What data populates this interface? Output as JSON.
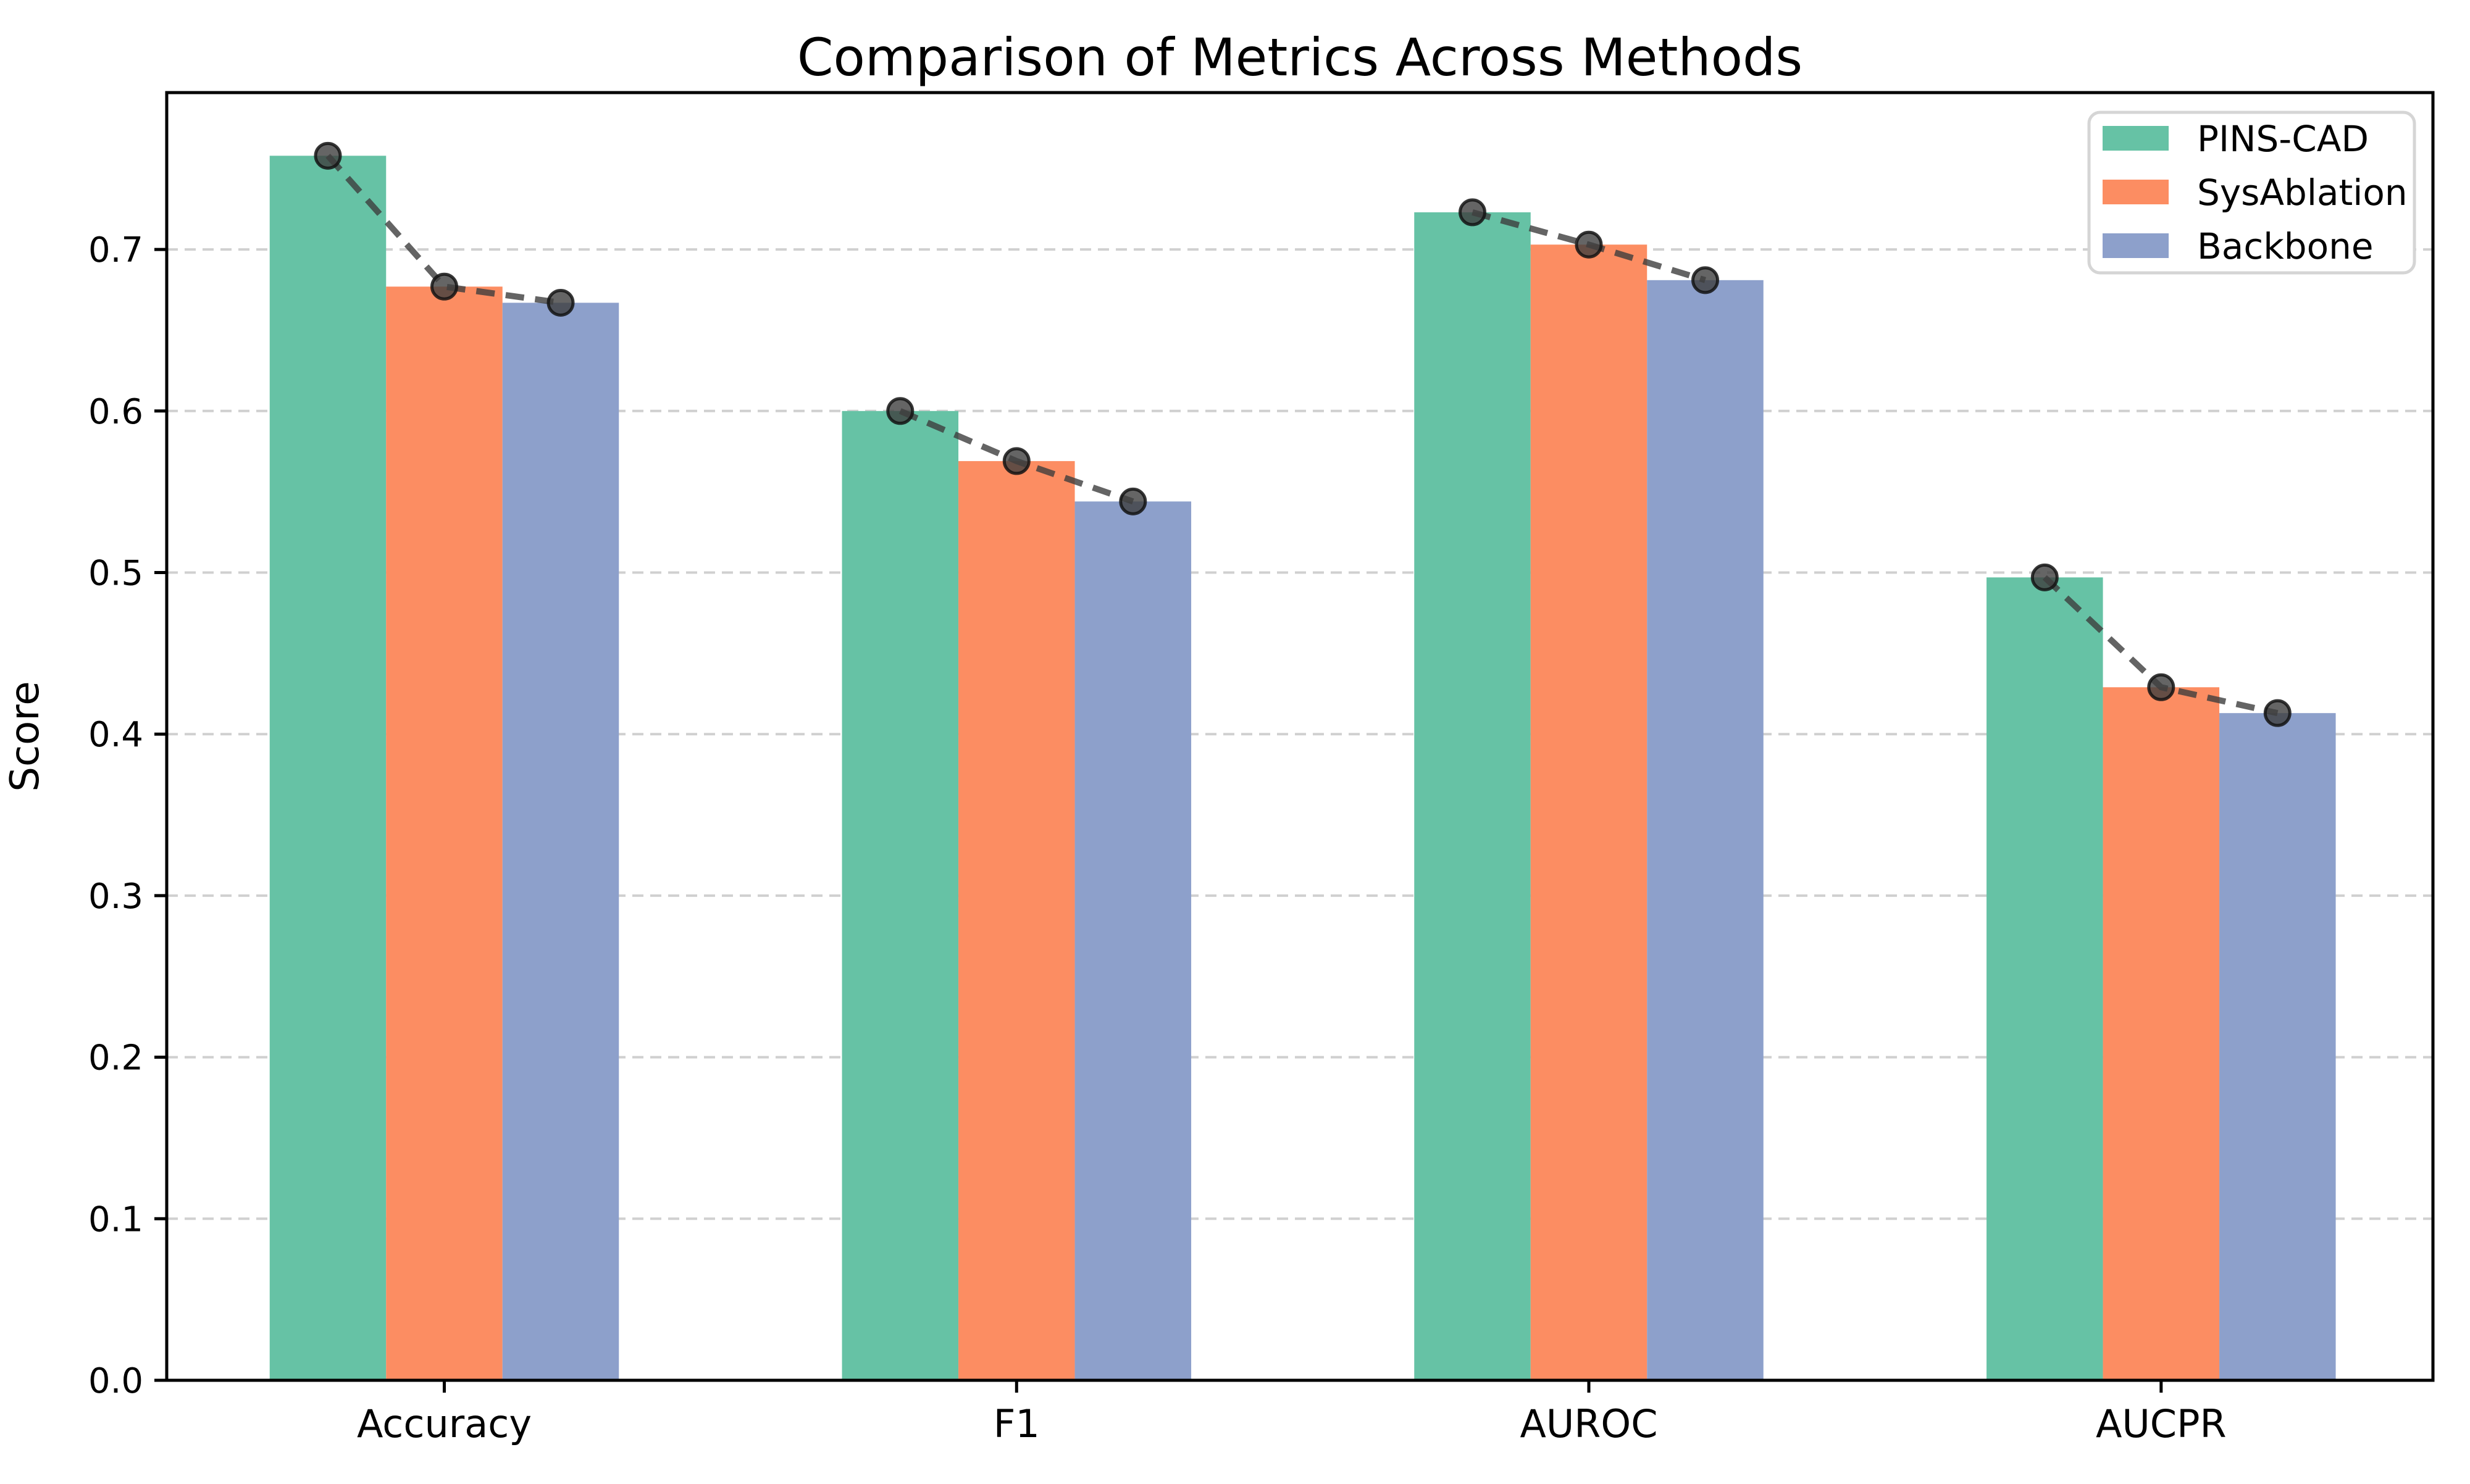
{
  "chart_data": {
    "type": "bar",
    "title": "Comparison of Metrics Across Methods",
    "xlabel": "",
    "ylabel": "Score",
    "categories": [
      "Accuracy",
      "F1",
      "AUROC",
      "AUCPR"
    ],
    "series": [
      {
        "name": "PINS-CAD",
        "color": "#66c2a5",
        "values": [
          0.758,
          0.6,
          0.723,
          0.497
        ]
      },
      {
        "name": "SysAblation",
        "color": "#fc8d62",
        "values": [
          0.677,
          0.569,
          0.703,
          0.429
        ]
      },
      {
        "name": "Backbone",
        "color": "#8da0cb",
        "values": [
          0.667,
          0.544,
          0.681,
          0.413
        ]
      }
    ],
    "overlay_line": {
      "description": "dashed dark-gray line with circular markers connecting the three bar tops within each category group",
      "style": "dashed",
      "color": "#3d3d3d",
      "marker": "circle",
      "marker_fill": "#3f3f3f",
      "marker_edge": "#141414"
    },
    "ylim": [
      0.0,
      0.8
    ],
    "yticks": [
      0.0,
      0.1,
      0.2,
      0.3,
      0.4,
      0.5,
      0.6,
      0.7
    ],
    "grid": "horizontal dashed lightgray",
    "grid_color": "#d0d0d0",
    "legend_position": "upper right",
    "legend_labels": [
      "PINS-CAD",
      "SysAblation",
      "Backbone"
    ]
  }
}
